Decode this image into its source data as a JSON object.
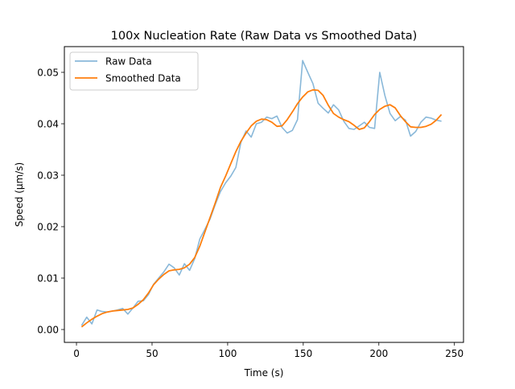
{
  "chart_data": {
    "type": "line",
    "title": "100x Nucleation Rate (Raw Data vs Smoothed Data)",
    "xlabel": "Time (s)",
    "ylabel": "Speed (μm/s)",
    "xlim": [
      -8,
      256
    ],
    "ylim": [
      -0.0025,
      0.055
    ],
    "xticks": [
      0,
      50,
      100,
      150,
      200,
      250
    ],
    "xtick_labels": [
      "0",
      "50",
      "100",
      "150",
      "200",
      "250"
    ],
    "yticks": [
      0.0,
      0.01,
      0.02,
      0.03,
      0.04,
      0.05
    ],
    "ytick_labels": [
      "0.00",
      "0.01",
      "0.02",
      "0.03",
      "0.04",
      "0.05"
    ],
    "grid": false,
    "legend": "top-left",
    "series": [
      {
        "name": "Raw Data",
        "color": "#89b8d9",
        "x": [
          3.4,
          6.8,
          10.2,
          13.6,
          17.0,
          20.4,
          23.8,
          27.2,
          30.6,
          34.0,
          37.4,
          40.8,
          44.2,
          47.6,
          51.0,
          54.4,
          57.8,
          61.2,
          64.6,
          68.0,
          71.4,
          74.8,
          78.2,
          81.6,
          85.0,
          88.4,
          91.8,
          95.2,
          98.6,
          102.0,
          105.4,
          108.8,
          112.2,
          115.6,
          119.0,
          122.4,
          125.8,
          129.2,
          132.6,
          136.0,
          139.4,
          142.8,
          146.2,
          149.6,
          153.0,
          156.4,
          159.8,
          163.2,
          166.6,
          170.0,
          173.4,
          176.8,
          180.2,
          183.6,
          187.0,
          190.4,
          193.8,
          197.2,
          200.6,
          204.0,
          207.4,
          210.8,
          214.2,
          217.6,
          221.0,
          224.4,
          227.8,
          231.2,
          234.6,
          238.0,
          241.4
        ],
        "y": [
          0.0008,
          0.0024,
          0.0011,
          0.0038,
          0.0035,
          0.0034,
          0.0036,
          0.0038,
          0.0041,
          0.003,
          0.0042,
          0.0055,
          0.0056,
          0.0068,
          0.0088,
          0.01,
          0.0112,
          0.0127,
          0.012,
          0.0106,
          0.0128,
          0.0115,
          0.0138,
          0.0176,
          0.0195,
          0.0215,
          0.0243,
          0.0268,
          0.0285,
          0.0298,
          0.0315,
          0.0364,
          0.0386,
          0.0374,
          0.04,
          0.0403,
          0.0413,
          0.041,
          0.0415,
          0.0393,
          0.0382,
          0.0387,
          0.0408,
          0.0523,
          0.05,
          0.0478,
          0.044,
          0.043,
          0.0421,
          0.0437,
          0.0427,
          0.0405,
          0.0391,
          0.0389,
          0.0396,
          0.0403,
          0.0393,
          0.0391,
          0.05,
          0.0455,
          0.042,
          0.0406,
          0.0414,
          0.0407,
          0.0376,
          0.0385,
          0.0403,
          0.0413,
          0.0411,
          0.0407,
          0.0405
        ]
      },
      {
        "name": "Smoothed Data",
        "color": "#ff7f0e",
        "x": [
          3.4,
          6.8,
          10.2,
          13.6,
          17.0,
          20.4,
          23.8,
          27.2,
          30.6,
          34.0,
          37.4,
          40.8,
          44.2,
          47.6,
          51.0,
          54.4,
          57.8,
          61.2,
          64.6,
          68.0,
          71.4,
          74.8,
          78.2,
          81.6,
          85.0,
          88.4,
          91.8,
          95.2,
          98.6,
          102.0,
          105.4,
          108.8,
          112.2,
          115.6,
          119.0,
          122.4,
          125.8,
          129.2,
          132.6,
          136.0,
          139.4,
          142.8,
          146.2,
          149.6,
          153.0,
          156.4,
          159.8,
          163.2,
          166.6,
          170.0,
          173.4,
          176.8,
          180.2,
          183.6,
          187.0,
          190.4,
          193.8,
          197.2,
          200.6,
          204.0,
          207.4,
          210.8,
          214.2,
          217.6,
          221.0,
          224.4,
          227.8,
          231.2,
          234.6,
          238.0,
          241.4
        ],
        "y": [
          0.0005,
          0.0013,
          0.002,
          0.0026,
          0.0031,
          0.0034,
          0.0036,
          0.0037,
          0.0038,
          0.0039,
          0.0042,
          0.0049,
          0.0058,
          0.0071,
          0.0087,
          0.0098,
          0.0107,
          0.0114,
          0.0116,
          0.0117,
          0.012,
          0.0127,
          0.014,
          0.0162,
          0.019,
          0.0218,
          0.0246,
          0.0276,
          0.0298,
          0.0322,
          0.0346,
          0.0366,
          0.0382,
          0.0396,
          0.0405,
          0.0409,
          0.0408,
          0.0403,
          0.0395,
          0.0396,
          0.0408,
          0.0423,
          0.0439,
          0.0452,
          0.0462,
          0.0466,
          0.0465,
          0.0455,
          0.0436,
          0.042,
          0.0413,
          0.0408,
          0.0404,
          0.0397,
          0.0389,
          0.0392,
          0.0404,
          0.0418,
          0.0428,
          0.0434,
          0.0437,
          0.0431,
          0.0416,
          0.0404,
          0.0394,
          0.0393,
          0.0393,
          0.0395,
          0.0399,
          0.0407,
          0.0418
        ]
      }
    ]
  }
}
